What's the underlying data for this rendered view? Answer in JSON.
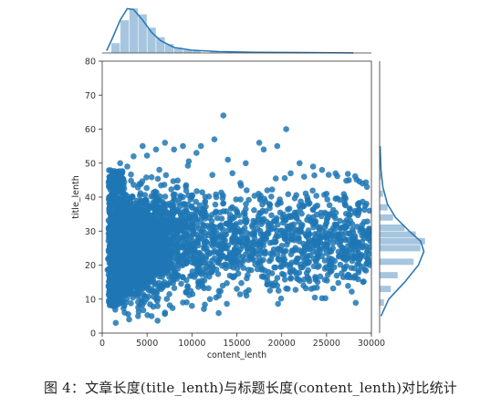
{
  "caption": "图 4：文章长度(title_lenth)与标题长度(content_lenth)对比统计",
  "colors": {
    "points": "#1f77b4",
    "hist_fill": "#a6c6e0",
    "kde_line": "#2f78b4",
    "axes": "#333333"
  },
  "chart_data": {
    "type": "scatter",
    "xlabel": "content_lenth",
    "ylabel": "title_lenth",
    "xlim": [
      0,
      30000
    ],
    "ylim": [
      0,
      80
    ],
    "xticks": [
      "0",
      "5000",
      "10000",
      "15000",
      "20000",
      "25000",
      "30000"
    ],
    "yticks": [
      "0",
      "10",
      "20",
      "30",
      "40",
      "50",
      "60",
      "70",
      "80"
    ],
    "grid": false,
    "marginals": {
      "x": {
        "type": "histogram+kde",
        "bins": [
          [
            1000,
            0.22
          ],
          [
            2000,
            0.72
          ],
          [
            3000,
            0.98
          ],
          [
            4000,
            0.85
          ],
          [
            5000,
            0.56
          ],
          [
            6000,
            0.35
          ],
          [
            7000,
            0.2
          ],
          [
            8000,
            0.12
          ],
          [
            9000,
            0.07
          ],
          [
            10000,
            0.05
          ],
          [
            12000,
            0.03
          ],
          [
            15000,
            0.02
          ],
          [
            20000,
            0.01
          ],
          [
            25000,
            0.005
          ]
        ],
        "kde": [
          [
            500,
            0.05
          ],
          [
            1200,
            0.35
          ],
          [
            2000,
            0.72
          ],
          [
            2800,
            0.97
          ],
          [
            3500,
            0.95
          ],
          [
            4500,
            0.72
          ],
          [
            5500,
            0.45
          ],
          [
            6500,
            0.27
          ],
          [
            8000,
            0.12
          ],
          [
            10000,
            0.06
          ],
          [
            13000,
            0.03
          ],
          [
            17000,
            0.015
          ],
          [
            22000,
            0.008
          ],
          [
            28000,
            0.003
          ]
        ]
      },
      "y": {
        "type": "histogram+kde",
        "bins": [
          [
            8,
            0.1
          ],
          [
            12,
            0.25
          ],
          [
            16,
            0.4
          ],
          [
            20,
            0.75
          ],
          [
            24,
            0.9
          ],
          [
            26,
            1.0
          ],
          [
            28,
            0.8
          ],
          [
            30,
            0.55
          ],
          [
            33,
            0.3
          ],
          [
            36,
            0.18
          ],
          [
            40,
            0.08
          ],
          [
            45,
            0.03
          ],
          [
            50,
            0.01
          ]
        ],
        "kde": [
          [
            5,
            0.03
          ],
          [
            10,
            0.2
          ],
          [
            15,
            0.55
          ],
          [
            20,
            0.85
          ],
          [
            24,
            0.97
          ],
          [
            27,
            0.9
          ],
          [
            30,
            0.65
          ],
          [
            34,
            0.35
          ],
          [
            38,
            0.17
          ],
          [
            43,
            0.07
          ],
          [
            48,
            0.03
          ],
          [
            55,
            0.01
          ]
        ]
      }
    },
    "outliers": [
      [
        13500,
        64
      ],
      [
        20500,
        60
      ],
      [
        17500,
        56
      ],
      [
        19500,
        55
      ],
      [
        18000,
        54
      ],
      [
        8000,
        54
      ],
      [
        9000,
        55
      ],
      [
        12500,
        57
      ],
      [
        11000,
        55
      ],
      [
        10500,
        53
      ],
      [
        4500,
        55
      ],
      [
        6000,
        54
      ],
      [
        22000,
        50
      ],
      [
        23500,
        49
      ],
      [
        24500,
        48
      ],
      [
        26000,
        47
      ],
      [
        27500,
        45
      ],
      [
        29000,
        44
      ],
      [
        29500,
        43
      ],
      [
        25000,
        41
      ],
      [
        27000,
        40
      ],
      [
        28500,
        38
      ],
      [
        29800,
        36
      ],
      [
        29700,
        30
      ],
      [
        29900,
        27
      ],
      [
        29600,
        22
      ],
      [
        29800,
        20
      ],
      [
        27500,
        17
      ],
      [
        24000,
        15
      ],
      [
        21000,
        16
      ],
      [
        19500,
        14
      ],
      [
        16000,
        12
      ],
      [
        15000,
        13
      ],
      [
        13000,
        11
      ],
      [
        12000,
        10
      ],
      [
        10000,
        8
      ],
      [
        9000,
        9
      ],
      [
        7000,
        6
      ],
      [
        5500,
        5
      ],
      [
        4000,
        5
      ],
      [
        3000,
        4
      ],
      [
        2500,
        6
      ],
      [
        1500,
        3
      ],
      [
        1200,
        8
      ],
      [
        22500,
        46
      ],
      [
        21000,
        47
      ],
      [
        16000,
        50
      ],
      [
        14000,
        51
      ],
      [
        7000,
        56
      ],
      [
        3500,
        52
      ],
      [
        23000,
        38
      ],
      [
        26500,
        33
      ],
      [
        28000,
        26
      ],
      [
        25500,
        24
      ],
      [
        22500,
        20
      ],
      [
        18500,
        18
      ],
      [
        1000,
        40
      ],
      [
        800,
        45
      ],
      [
        1500,
        47
      ],
      [
        2000,
        50
      ],
      [
        2800,
        49
      ]
    ]
  }
}
